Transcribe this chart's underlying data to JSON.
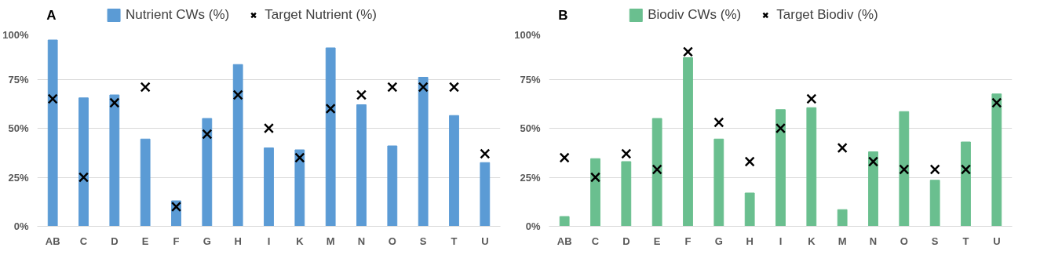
{
  "chart_data": [
    {
      "type": "bar",
      "title": "A",
      "categories": [
        "AB",
        "C",
        "D",
        "E",
        "F",
        "G",
        "H",
        "I",
        "K",
        "M",
        "N",
        "O",
        "S",
        "T",
        "U"
      ],
      "series": [
        {
          "name": "Nutrient CWs (%)",
          "color": "#5b9bd5",
          "values": [
            95,
            65.5,
            67,
            44.5,
            13,
            55,
            82.5,
            40,
            39,
            91,
            62,
            41,
            76,
            56.5,
            32.5
          ]
        },
        {
          "name": "Target Nutrient (%)",
          "type": "scatter",
          "marker": "cross",
          "color": "#000000",
          "values": [
            65,
            25,
            63,
            71,
            10,
            47,
            67,
            50,
            35,
            60,
            67,
            71,
            71,
            71,
            37
          ]
        }
      ],
      "ylim": [
        0,
        100
      ],
      "yticks": [
        {
          "value": 0,
          "label": "0%"
        },
        {
          "value": 25,
          "label": "25%"
        },
        {
          "value": 50,
          "label": "50%"
        },
        {
          "value": 75,
          "label": "75%"
        },
        {
          "value": 100,
          "label": "100%"
        }
      ],
      "grid": "y",
      "legend": "top"
    },
    {
      "type": "bar",
      "title": "B",
      "categories": [
        "AB",
        "C",
        "D",
        "E",
        "F",
        "G",
        "H",
        "I",
        "K",
        "M",
        "N",
        "O",
        "S",
        "T",
        "U"
      ],
      "series": [
        {
          "name": "Biodiv CWs (%)",
          "color": "#6abf8f",
          "values": [
            5,
            34.5,
            33,
            55,
            86,
            44.5,
            17,
            59.5,
            60.5,
            8.5,
            38,
            58.5,
            23.5,
            43,
            67.5
          ]
        },
        {
          "name": "Target Biodiv (%)",
          "type": "scatter",
          "marker": "cross",
          "color": "#000000",
          "values": [
            35,
            25,
            37,
            29,
            89,
            53,
            33,
            50,
            65,
            40,
            33,
            29,
            29,
            29,
            63
          ]
        }
      ],
      "ylim": [
        0,
        100
      ],
      "yticks": [
        {
          "value": 0,
          "label": "0%"
        },
        {
          "value": 25,
          "label": "25%"
        },
        {
          "value": 50,
          "label": "50%"
        },
        {
          "value": 75,
          "label": "75%"
        },
        {
          "value": 100,
          "label": "100%"
        }
      ],
      "grid": "y",
      "legend": "top"
    }
  ]
}
